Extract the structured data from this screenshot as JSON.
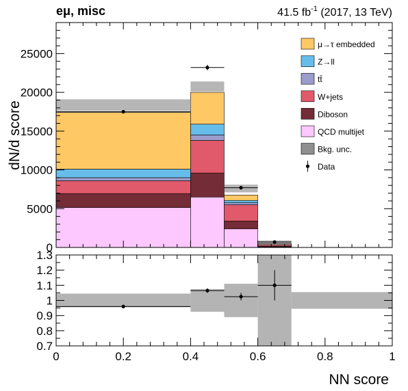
{
  "header": {
    "channel": "eμ, misc",
    "lumi_prefix": "41.5 fb",
    "lumi_exp": "-1",
    "lumi_suffix": " (2017, 13 TeV)"
  },
  "chart_data": [
    {
      "type": "stacked-histogram",
      "ylabel": "dN/d score",
      "ylim": [
        0,
        29000
      ],
      "yticks": [
        0,
        5000,
        10000,
        15000,
        20000,
        25000
      ],
      "ytick_labels": [
        "0",
        "5000",
        "10000",
        "15000",
        "20000",
        "25000"
      ],
      "bin_edges": [
        0,
        0.4,
        0.5,
        0.6,
        0.7,
        1.0
      ],
      "legend_position": "top-right",
      "series": [
        {
          "name": "QCD multijet",
          "color": "#fdc8ff",
          "values": [
            5150,
            6500,
            2400,
            80,
            0
          ]
        },
        {
          "name": "Diboson",
          "color": "#742c37",
          "values": [
            1800,
            3100,
            1000,
            110,
            0
          ]
        },
        {
          "name": "W+jets",
          "color": "#e05a6b",
          "values": [
            1650,
            4200,
            2100,
            230,
            0
          ]
        },
        {
          "name": "tt̄",
          "color": "#9a9ccc",
          "values": [
            400,
            700,
            260,
            30,
            0
          ]
        },
        {
          "name": "Z→ll",
          "color": "#66bdea",
          "values": [
            1100,
            1400,
            300,
            30,
            0
          ]
        },
        {
          "name": "μ→τ embedded",
          "color": "#fec865",
          "values": [
            7300,
            4100,
            700,
            40,
            0
          ]
        }
      ],
      "uncertainty": {
        "name": "Bkg. unc.",
        "color": "#8f8f8f",
        "low": [
          17600,
          20100,
          7100,
          300,
          0
        ],
        "high": [
          19100,
          21400,
          8100,
          900,
          0
        ]
      },
      "data": {
        "name": "Data",
        "x": [
          0.2,
          0.45,
          0.55,
          0.65
        ],
        "y": [
          17500,
          23200,
          7700,
          700
        ],
        "err": [
          130,
          350,
          200,
          80
        ]
      }
    },
    {
      "type": "ratio",
      "xlabel": "NN score",
      "xlim": [
        0,
        1
      ],
      "ylim": [
        0.7,
        1.3
      ],
      "xticks": [
        0,
        0.2,
        0.4,
        0.6,
        0.8,
        1.0
      ],
      "xtick_labels": [
        "0",
        "0.2",
        "0.4",
        "0.6",
        "0.8",
        "1"
      ],
      "yticks": [
        0.7,
        0.8,
        0.9,
        1.0,
        1.1,
        1.2,
        1.3
      ],
      "ytick_labels": [
        "0.7",
        "0.8",
        "0.9",
        "1",
        "1.1",
        "1.2",
        "1.3"
      ],
      "band": {
        "bin_edges": [
          0,
          0.4,
          0.5,
          0.6,
          0.7,
          1.0
        ],
        "low": [
          0.955,
          0.925,
          0.89,
          0.7,
          0.945
        ],
        "high": [
          1.045,
          1.075,
          1.11,
          1.3,
          1.055
        ]
      },
      "points": {
        "x": [
          0.2,
          0.45,
          0.55,
          0.65
        ],
        "y": [
          0.96,
          1.065,
          1.025,
          1.1
        ],
        "err": [
          0.005,
          0.015,
          0.025,
          0.1
        ]
      }
    }
  ]
}
